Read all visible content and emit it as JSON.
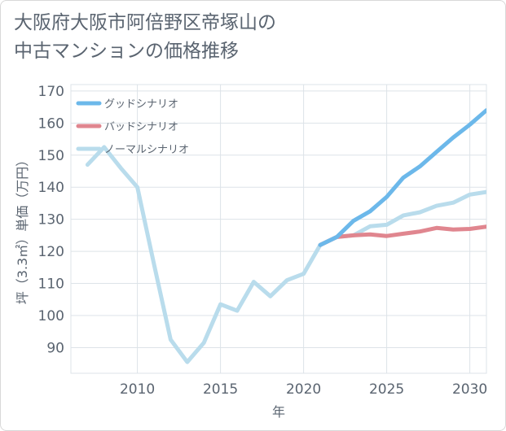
{
  "title": {
    "line1": "大阪府大阪市阿倍野区帝塚山の",
    "line2": "中古マンションの価格推移"
  },
  "chart_data": {
    "type": "line",
    "xlabel": "年",
    "ylabel": "坪（3.3㎡）単価（万円）",
    "xlim": [
      2006,
      2031
    ],
    "ylim": [
      82,
      172
    ],
    "x_ticks": [
      2010,
      2015,
      2020,
      2025,
      2030
    ],
    "y_ticks": [
      90,
      100,
      110,
      120,
      130,
      140,
      150,
      160,
      170
    ],
    "grid": true,
    "legend_position": "top-left",
    "series": [
      {
        "name": "グッドシナリオ",
        "color": "#6cb8ea",
        "x": [
          2021,
          2022,
          2023,
          2024,
          2025,
          2026,
          2027,
          2028,
          2029,
          2030,
          2031
        ],
        "values": [
          122,
          124.5,
          129.5,
          132.5,
          137,
          143,
          146.5,
          151,
          155.5,
          159.5,
          164
        ]
      },
      {
        "name": "バッドシナリオ",
        "color": "#e0868f",
        "x": [
          2021,
          2022,
          2023,
          2024,
          2025,
          2026,
          2027,
          2028,
          2029,
          2030,
          2031
        ],
        "values": [
          122,
          124.5,
          125,
          125.3,
          124.8,
          125.5,
          126.2,
          127.3,
          126.8,
          127,
          127.7
        ]
      },
      {
        "name": "ノーマルシナリオ",
        "color": "#b9dcec",
        "x": [
          2007,
          2008,
          2009,
          2010,
          2011,
          2012,
          2013,
          2014,
          2015,
          2016,
          2017,
          2018,
          2019,
          2020,
          2021,
          2022,
          2023,
          2024,
          2025,
          2026,
          2027,
          2028,
          2029,
          2030,
          2031
        ],
        "values": [
          147,
          152.5,
          146,
          140,
          116,
          92.5,
          85.5,
          91.5,
          103.5,
          101.5,
          110.5,
          106,
          111,
          113,
          122,
          124.5,
          125,
          127.8,
          128.3,
          131.2,
          132.2,
          134.2,
          135.2,
          137.7,
          138.5
        ]
      }
    ]
  }
}
